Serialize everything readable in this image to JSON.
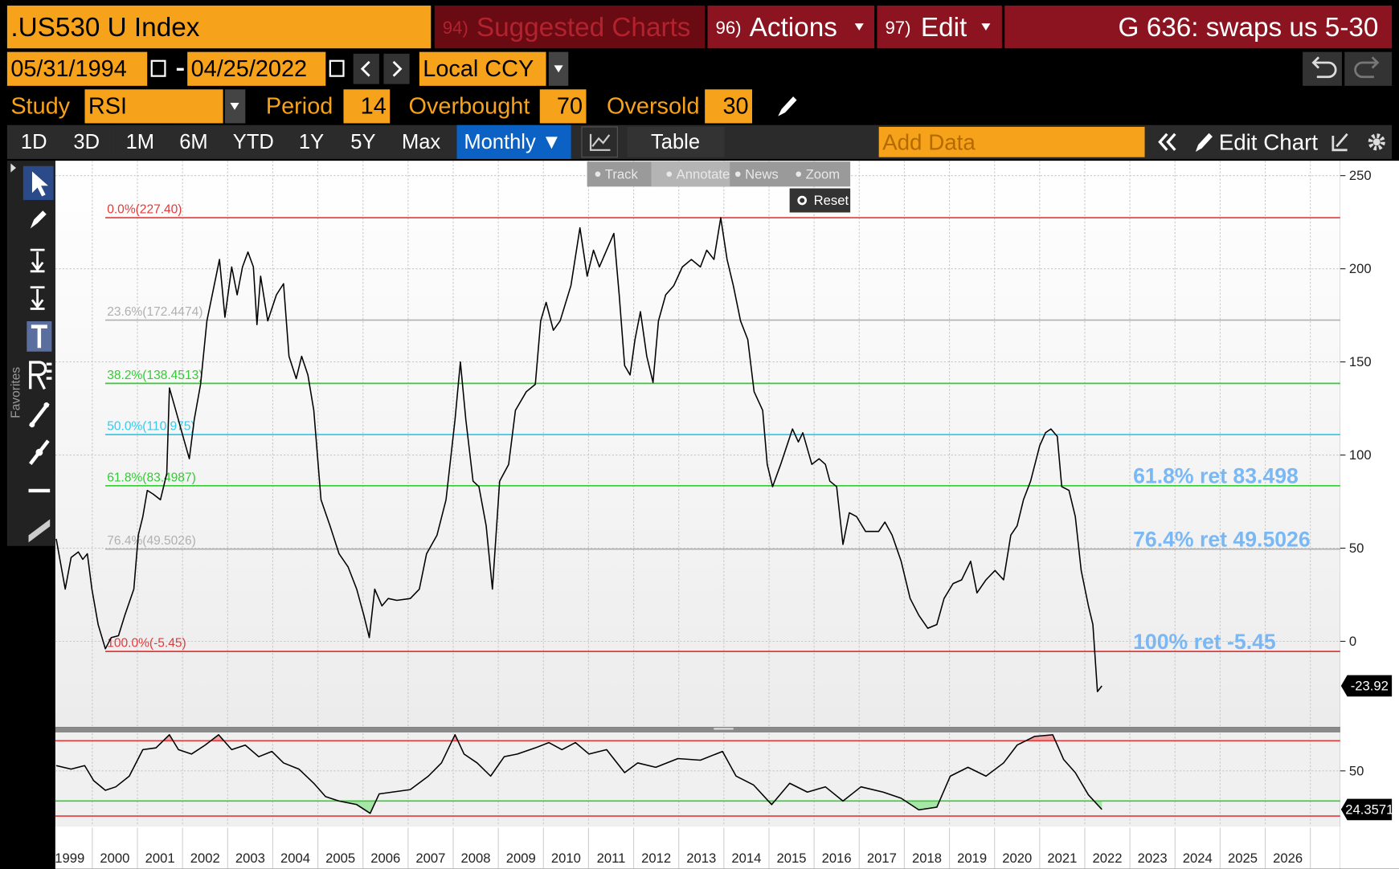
{
  "header": {
    "ticker": ".US530 U Index",
    "menu": [
      {
        "num": "94)",
        "label": "Suggested Charts"
      },
      {
        "num": "96)",
        "label": "Actions"
      },
      {
        "num": "97)",
        "label": "Edit"
      }
    ],
    "page_title": "G 636: swaps us 5-30"
  },
  "controls": {
    "start_date": "05/31/1994",
    "end_date": "04/25/2022",
    "currency": "Local CCY",
    "study_label": "Study",
    "study": "RSI",
    "period_label": "Period",
    "period": 14,
    "overbought_label": "Overbought",
    "overbought": 70,
    "oversold_label": "Oversold",
    "oversold": 30
  },
  "toolbar": {
    "ranges": [
      "1D",
      "3D",
      "1M",
      "6M",
      "YTD",
      "1Y",
      "5Y",
      "Max"
    ],
    "frequency": "Monthly ▼",
    "table": "Table",
    "add_data": "Add Data",
    "edit_chart": "Edit Chart"
  },
  "chart_tools": [
    "Track",
    "Annotate",
    "News",
    "Zoom"
  ],
  "reset": "Reset",
  "sidebar_label": "Favorites",
  "chart_data": [
    {
      "type": "line",
      "color": "#000000",
      "xlim": [
        1999.18,
        2027.66
      ],
      "ylim": [
        -46,
        258
      ],
      "yticks": [
        0,
        50,
        100,
        150,
        200,
        250
      ],
      "xgrid": [
        2000,
        2001,
        2002,
        2003,
        2004,
        2005,
        2006,
        2007,
        2008,
        2009,
        2010,
        2011,
        2012,
        2013,
        2014,
        2015,
        2016,
        2017,
        2018,
        2019,
        2020,
        2021,
        2022,
        2023,
        2024,
        2025,
        2026,
        2027
      ],
      "grid": true,
      "x": [
        1999.2,
        1999.4,
        1999.53,
        1999.69,
        1999.79,
        1999.89,
        1999.99,
        2000.13,
        2000.29,
        2000.42,
        2000.58,
        2000.72,
        2000.92,
        2001.02,
        2001.12,
        2001.22,
        2001.35,
        2001.51,
        2001.65,
        2001.71,
        2001.85,
        2002.01,
        2002.15,
        2002.26,
        2002.4,
        2002.54,
        2002.7,
        2002.82,
        2002.94,
        2003.09,
        2003.21,
        2003.33,
        2003.45,
        2003.57,
        2003.65,
        2003.73,
        2003.89,
        2004.08,
        2004.24,
        2004.36,
        2004.52,
        2004.64,
        2004.78,
        2004.91,
        2005.07,
        2005.27,
        2005.47,
        2005.67,
        2005.86,
        2006.02,
        2006.14,
        2006.26,
        2006.42,
        2006.56,
        2006.75,
        2007.05,
        2007.25,
        2007.41,
        2007.64,
        2007.84,
        2008.04,
        2008.16,
        2008.28,
        2008.44,
        2008.57,
        2008.73,
        2008.87,
        2009.03,
        2009.23,
        2009.38,
        2009.62,
        2009.82,
        2009.94,
        2010.06,
        2010.22,
        2010.37,
        2010.61,
        2010.81,
        2010.97,
        2011.11,
        2011.24,
        2011.4,
        2011.56,
        2011.68,
        2011.8,
        2011.92,
        2012.03,
        2012.15,
        2012.29,
        2012.43,
        2012.55,
        2012.71,
        2012.89,
        2013.08,
        2013.28,
        2013.48,
        2013.62,
        2013.78,
        2013.93,
        2014.07,
        2014.21,
        2014.37,
        2014.53,
        2014.67,
        2014.86,
        2014.96,
        2015.08,
        2015.26,
        2015.52,
        2015.65,
        2015.75,
        2015.95,
        2016.11,
        2016.25,
        2016.35,
        2016.5,
        2016.64,
        2016.78,
        2016.94,
        2017.14,
        2017.43,
        2017.57,
        2017.73,
        2017.93,
        2018.13,
        2018.32,
        2018.52,
        2018.72,
        2018.88,
        2019.08,
        2019.27,
        2019.47,
        2019.61,
        2019.81,
        2020.01,
        2020.2,
        2020.36,
        2020.5,
        2020.64,
        2020.8,
        2021.0,
        2021.13,
        2021.25,
        2021.39,
        2021.49,
        2021.65,
        2021.79,
        2021.92,
        2022.08,
        2022.18,
        2022.28,
        2022.38
      ],
      "values": [
        55,
        28,
        45,
        48,
        44,
        47,
        28,
        9,
        -4,
        2,
        3,
        14,
        28,
        57,
        67,
        81,
        79,
        76,
        90,
        136,
        124,
        110,
        98,
        119,
        138,
        172,
        191,
        205,
        174,
        201,
        186,
        201,
        209,
        201,
        170,
        196,
        172,
        186,
        192,
        153,
        141,
        153,
        143,
        124,
        76,
        62,
        47,
        40,
        28,
        14,
        2,
        28,
        19,
        23,
        22,
        23,
        28,
        47,
        57,
        76,
        119,
        150,
        119,
        86,
        83,
        62,
        28,
        86,
        95,
        124,
        134,
        138,
        172,
        182,
        167,
        172,
        191,
        222,
        196,
        210,
        201,
        210,
        219,
        186,
        148,
        143,
        162,
        177,
        153,
        139,
        172,
        186,
        191,
        201,
        205,
        201,
        210,
        205,
        227.4,
        205,
        191,
        172,
        162,
        134,
        124,
        95,
        83,
        95,
        114,
        107,
        112,
        95,
        98,
        95,
        86,
        83,
        52,
        69,
        67,
        59,
        59,
        64,
        57,
        43,
        23,
        14,
        7,
        9,
        23,
        31,
        33,
        43,
        26,
        33,
        38,
        33,
        57,
        62,
        76,
        86,
        105,
        112,
        114,
        110,
        83,
        81,
        67,
        38,
        19,
        9,
        -27,
        -23.92
      ],
      "levels": [
        {
          "label": "0.0%(227.40)",
          "value": 227.4,
          "color": "#e23a3a"
        },
        {
          "label": "23.6%(172.4474)",
          "value": 172.4474,
          "color": "#b0b0b0"
        },
        {
          "label": "38.2%(138.4513)",
          "value": 138.4513,
          "color": "#33cc33"
        },
        {
          "label": "50.0%(110.975)",
          "value": 110.975,
          "color": "#33ccee"
        },
        {
          "label": "61.8%(83.4987)",
          "value": 83.4987,
          "color": "#33cc33"
        },
        {
          "label": "76.4%(49.5026)",
          "value": 49.5026,
          "color": "#b0b0b0"
        },
        {
          "label": "100.0%(-5.45)",
          "value": -5.45,
          "color": "#e23a3a"
        }
      ],
      "annotations": [
        {
          "text": "61.8% ret 83.498",
          "value": 83.498
        },
        {
          "text": "76.4% ret 49.5026",
          "value": 49.5026
        },
        {
          "text": "100% ret -5.45",
          "value": -5.45
        }
      ],
      "annotation_color": "#7ab8f5"
    },
    {
      "type": "line",
      "color": "#000000",
      "xlim": [
        1999.18,
        2027.66
      ],
      "ylim": [
        14,
        75
      ],
      "yticks": [
        50
      ],
      "xticks": [
        {
          "value": 1999.5,
          "label": "1999"
        },
        {
          "value": 2000.5,
          "label": "2000"
        },
        {
          "value": 2001.5,
          "label": "2001"
        },
        {
          "value": 2002.5,
          "label": "2002"
        },
        {
          "value": 2003.5,
          "label": "2003"
        },
        {
          "value": 2004.5,
          "label": "2004"
        },
        {
          "value": 2005.5,
          "label": "2005"
        },
        {
          "value": 2006.5,
          "label": "2006"
        },
        {
          "value": 2007.5,
          "label": "2007"
        },
        {
          "value": 2008.5,
          "label": "2008"
        },
        {
          "value": 2009.5,
          "label": "2009"
        },
        {
          "value": 2010.5,
          "label": "2010"
        },
        {
          "value": 2011.5,
          "label": "2011"
        },
        {
          "value": 2012.5,
          "label": "2012"
        },
        {
          "value": 2013.5,
          "label": "2013"
        },
        {
          "value": 2014.5,
          "label": "2014"
        },
        {
          "value": 2015.5,
          "label": "2015"
        },
        {
          "value": 2016.5,
          "label": "2016"
        },
        {
          "value": 2017.5,
          "label": "2017"
        },
        {
          "value": 2018.5,
          "label": "2018"
        },
        {
          "value": 2019.5,
          "label": "2019"
        },
        {
          "value": 2020.5,
          "label": "2020"
        },
        {
          "value": 2021.5,
          "label": "2021"
        },
        {
          "value": 2022.5,
          "label": "2022"
        },
        {
          "value": 2023.5,
          "label": "2023"
        },
        {
          "value": 2024.5,
          "label": "2024"
        },
        {
          "value": 2025.5,
          "label": "2025"
        },
        {
          "value": 2026.5,
          "label": "2026"
        }
      ],
      "x": [
        1999.2,
        1999.53,
        1999.83,
        2000.03,
        2000.29,
        2000.52,
        2000.82,
        2001.12,
        2001.41,
        2001.71,
        2001.91,
        2002.2,
        2002.5,
        2002.8,
        2003.09,
        2003.39,
        2003.69,
        2003.98,
        2004.24,
        2004.58,
        2004.91,
        2005.17,
        2005.47,
        2005.86,
        2006.16,
        2006.36,
        2006.65,
        2007.05,
        2007.45,
        2007.74,
        2008.04,
        2008.24,
        2008.53,
        2008.83,
        2009.13,
        2009.42,
        2009.82,
        2010.12,
        2010.41,
        2010.71,
        2011.01,
        2011.4,
        2011.8,
        2012.09,
        2012.49,
        2012.98,
        2013.48,
        2013.97,
        2014.27,
        2014.66,
        2015.06,
        2015.46,
        2015.85,
        2016.25,
        2016.64,
        2017.04,
        2017.53,
        2017.93,
        2018.32,
        2018.72,
        2019.02,
        2019.41,
        2019.81,
        2020.2,
        2020.5,
        2020.89,
        2021.29,
        2021.53,
        2021.79,
        2022.08,
        2022.38
      ],
      "values": [
        53.5,
        51.2,
        53.5,
        43.5,
        37.1,
        39.4,
        46.5,
        64.1,
        65.3,
        74,
        64.1,
        61.2,
        67.1,
        74,
        64.1,
        67.1,
        59.4,
        62.9,
        55.3,
        51.2,
        41.8,
        32.9,
        30,
        27.6,
        21.8,
        34.7,
        35.9,
        37.6,
        46.5,
        55.3,
        74,
        61.2,
        55.3,
        46.5,
        59.4,
        61.2,
        65.3,
        68.8,
        64.1,
        68.8,
        61.2,
        64.1,
        48.8,
        55.3,
        52.4,
        58.2,
        57.1,
        62.9,
        46.5,
        40.6,
        27.6,
        41.8,
        35.9,
        39.4,
        30,
        39.4,
        35.9,
        31.8,
        24.1,
        25.9,
        46.5,
        52.4,
        46.5,
        55.3,
        67.1,
        72.9,
        74,
        57.6,
        48.8,
        34.1,
        24.3571
      ],
      "overbought_color": "#e23a3a",
      "oversold_color": "#33cc33",
      "overbought_fill": "#f3a3a3",
      "oversold_fill": "#a6e6a6",
      "lower_line": 20,
      "lower_line_color": "#e23a3a",
      "grid": true
    }
  ]
}
